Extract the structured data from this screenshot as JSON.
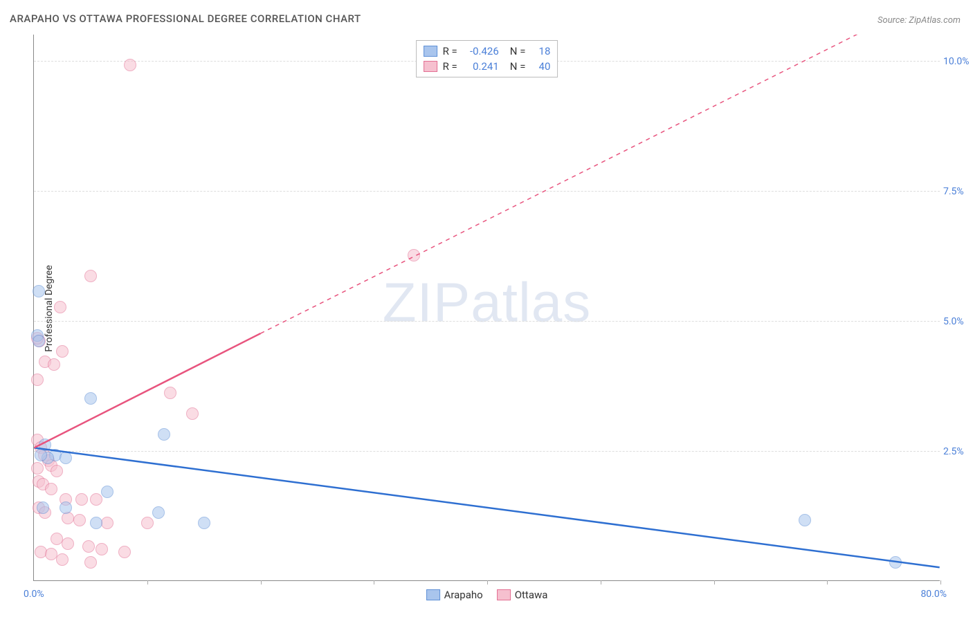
{
  "title": "ARAPAHO VS OTTAWA PROFESSIONAL DEGREE CORRELATION CHART",
  "source": "Source: ZipAtlas.com",
  "y_axis_label": "Professional Degree",
  "watermark_bold": "ZIP",
  "watermark_thin": "atlas",
  "xlim": [
    0,
    80
  ],
  "ylim": [
    0,
    10.5
  ],
  "x_min_label": "0.0%",
  "x_max_label": "80.0%",
  "y_gridlines": [
    {
      "value": 2.5,
      "label": "2.5%"
    },
    {
      "value": 5.0,
      "label": "5.0%"
    },
    {
      "value": 7.5,
      "label": "7.5%"
    },
    {
      "value": 10.0,
      "label": "10.0%"
    }
  ],
  "x_ticks": [
    10,
    20,
    30,
    40,
    50,
    60,
    70,
    80
  ],
  "series": {
    "arapaho": {
      "label": "Arapaho",
      "fill": "#a9c5ed",
      "stroke": "#5f90d6",
      "line_color": "#2e6fd1",
      "stats_r": "-0.426",
      "stats_n": "18",
      "trend": {
        "x1": 0,
        "y1": 2.55,
        "x2": 80,
        "y2": 0.25
      },
      "points": [
        {
          "x": 0.4,
          "y": 5.55
        },
        {
          "x": 0.3,
          "y": 4.7
        },
        {
          "x": 0.4,
          "y": 4.6
        },
        {
          "x": 1.0,
          "y": 2.6
        },
        {
          "x": 1.9,
          "y": 2.4
        },
        {
          "x": 2.8,
          "y": 2.35
        },
        {
          "x": 5.0,
          "y": 3.5
        },
        {
          "x": 11.5,
          "y": 2.8
        },
        {
          "x": 0.8,
          "y": 1.4
        },
        {
          "x": 2.8,
          "y": 1.4
        },
        {
          "x": 6.5,
          "y": 1.7
        },
        {
          "x": 11.0,
          "y": 1.3
        },
        {
          "x": 15.0,
          "y": 1.1
        },
        {
          "x": 5.5,
          "y": 1.1
        },
        {
          "x": 68.0,
          "y": 1.15
        },
        {
          "x": 76.0,
          "y": 0.35
        },
        {
          "x": 1.2,
          "y": 2.35
        },
        {
          "x": 0.6,
          "y": 2.4
        }
      ]
    },
    "ottawa": {
      "label": "Ottawa",
      "fill": "#f6c0cf",
      "stroke": "#e36f93",
      "line_color": "#e8547e",
      "stats_r": "0.241",
      "stats_n": "40",
      "trend_solid": {
        "x1": 0,
        "y1": 2.55,
        "x2": 20,
        "y2": 4.75
      },
      "trend_dashed": {
        "x1": 20,
        "y1": 4.75,
        "x2": 80,
        "y2": 11.3
      },
      "points": [
        {
          "x": 8.5,
          "y": 9.9
        },
        {
          "x": 33.5,
          "y": 6.25
        },
        {
          "x": 5.0,
          "y": 5.85
        },
        {
          "x": 2.3,
          "y": 5.25
        },
        {
          "x": 0.5,
          "y": 4.6
        },
        {
          "x": 0.3,
          "y": 4.65
        },
        {
          "x": 2.5,
          "y": 4.4
        },
        {
          "x": 1.0,
          "y": 4.2
        },
        {
          "x": 1.8,
          "y": 4.15
        },
        {
          "x": 0.3,
          "y": 3.85
        },
        {
          "x": 12.0,
          "y": 3.6
        },
        {
          "x": 14.0,
          "y": 3.2
        },
        {
          "x": 0.3,
          "y": 2.7
        },
        {
          "x": 0.6,
          "y": 2.55
        },
        {
          "x": 0.9,
          "y": 2.4
        },
        {
          "x": 1.3,
          "y": 2.3
        },
        {
          "x": 0.3,
          "y": 2.15
        },
        {
          "x": 1.5,
          "y": 2.2
        },
        {
          "x": 2.0,
          "y": 2.1
        },
        {
          "x": 0.4,
          "y": 1.9
        },
        {
          "x": 0.8,
          "y": 1.85
        },
        {
          "x": 1.5,
          "y": 1.75
        },
        {
          "x": 2.8,
          "y": 1.55
        },
        {
          "x": 4.2,
          "y": 1.55
        },
        {
          "x": 5.5,
          "y": 1.55
        },
        {
          "x": 0.4,
          "y": 1.4
        },
        {
          "x": 1.0,
          "y": 1.3
        },
        {
          "x": 3.0,
          "y": 1.2
        },
        {
          "x": 4.0,
          "y": 1.15
        },
        {
          "x": 6.5,
          "y": 1.1
        },
        {
          "x": 10.0,
          "y": 1.1
        },
        {
          "x": 2.0,
          "y": 0.8
        },
        {
          "x": 3.0,
          "y": 0.7
        },
        {
          "x": 4.8,
          "y": 0.65
        },
        {
          "x": 6.0,
          "y": 0.6
        },
        {
          "x": 8.0,
          "y": 0.55
        },
        {
          "x": 2.5,
          "y": 0.4
        },
        {
          "x": 5.0,
          "y": 0.35
        },
        {
          "x": 0.6,
          "y": 0.55
        },
        {
          "x": 1.5,
          "y": 0.5
        }
      ]
    }
  },
  "stats_labels": {
    "R": "R =",
    "N": "N ="
  }
}
